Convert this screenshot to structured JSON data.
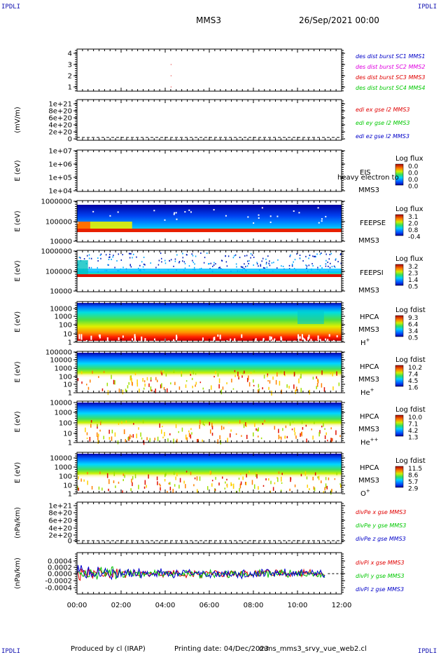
{
  "corners": {
    "tl": "IPDLI",
    "tr": "IPDLI",
    "bl": "IPDLI",
    "br": "IPDLI"
  },
  "header": {
    "spacecraft": "MMS3",
    "date": "26/Sep/2021 00:00"
  },
  "footer": {
    "produced": "Produced by cl (IRAP)",
    "printing": "Printing date: 04/Dec/2023",
    "file": "mms_mms3_srvy_vue_web2.cl"
  },
  "x_ticks": [
    "00:00",
    "02:00",
    "04:00",
    "06:00",
    "08:00",
    "10:00",
    "12:00"
  ],
  "colors": {
    "blue": "#0000c8",
    "magenta": "#e000e0",
    "red": "#e00000",
    "green": "#00c800"
  },
  "chart_data": [
    {
      "type": "scatter",
      "panel": "burst",
      "yticks": [
        "4",
        "3",
        "2",
        "1"
      ],
      "legend": [
        {
          "text": "des dist burst SC1 MMS1",
          "color": "#0000c8"
        },
        {
          "text": "des dist burst SC2 MMS2",
          "color": "#e000e0"
        },
        {
          "text": "des dist burst SC3 MMS3",
          "color": "#e00000"
        },
        {
          "text": "des dist burst SC4 MMS4",
          "color": "#00c800"
        }
      ],
      "points": [
        {
          "x": "04:15",
          "y": 3
        },
        {
          "x": "04:15",
          "y": 2
        },
        {
          "x": "04:15",
          "y": 1
        }
      ]
    },
    {
      "type": "line",
      "panel": "edi",
      "ylabel": "(mV/m)",
      "yticks": [
        "1e+21",
        "8e+20",
        "6e+20",
        "4e+20",
        "2e+20",
        "0"
      ],
      "legend": [
        {
          "text": "edi ex gse l2 MMS3",
          "color": "#e00000"
        },
        {
          "text": "edi ey gse l2 MMS3",
          "color": "#00c800"
        },
        {
          "text": "edi ez gse l2 MMS3",
          "color": "#0000c8"
        }
      ]
    },
    {
      "type": "heatmap",
      "panel": "eis",
      "ylabel": "E (eV)",
      "yticks": [
        "1e+07",
        "1e+06",
        "1e+05",
        "1e+04"
      ],
      "label": "EIS",
      "sublabel": "MMS3",
      "overlay": "heavy electron to",
      "cbar_title": "Log flux",
      "cbar_ticks": [
        "0.0",
        "0.0",
        "0.0",
        "0.0"
      ]
    },
    {
      "type": "heatmap",
      "panel": "feepse",
      "ylabel": "E (eV)",
      "yticks": [
        "1000000",
        "100000",
        "10000"
      ],
      "label": "FEEPSE",
      "sublabel": "MMS3",
      "cbar_title": "Log flux",
      "cbar_ticks": [
        "3.1",
        "2.0",
        "0.8",
        "-0.4"
      ]
    },
    {
      "type": "heatmap",
      "panel": "feepsi",
      "ylabel": "E (eV)",
      "yticks": [
        "1000000",
        "100000",
        "10000"
      ],
      "label": "FEEPSI",
      "sublabel": "MMS3",
      "cbar_title": "Log flux",
      "cbar_ticks": [
        "3.2",
        "2.3",
        "1.4",
        "0.5"
      ]
    },
    {
      "type": "heatmap",
      "panel": "hpca_h",
      "ylabel": "E (eV)",
      "yticks": [
        "10000",
        "1000",
        "100",
        "10",
        "1"
      ],
      "label": "HPCA",
      "sublabel": "MMS3",
      "species": "H",
      "charge": "+",
      "cbar_title": "Log fdist",
      "cbar_ticks": [
        "9.3",
        "6.4",
        "3.4",
        "0.5"
      ]
    },
    {
      "type": "heatmap",
      "panel": "hpca_he",
      "ylabel": "E (eV)",
      "yticks": [
        "100000",
        "10000",
        "1000",
        "100",
        "10",
        "1"
      ],
      "label": "HPCA",
      "sublabel": "MMS3",
      "species": "He",
      "charge": "+",
      "cbar_title": "Log fdist",
      "cbar_ticks": [
        "10.2",
        "7.4",
        "4.5",
        "1.6"
      ]
    },
    {
      "type": "heatmap",
      "panel": "hpca_hepp",
      "ylabel": "E (eV)",
      "yticks": [
        "10000",
        "1000",
        "100",
        "10",
        "1"
      ],
      "label": "HPCA",
      "sublabel": "MMS3",
      "species": "He",
      "charge": "++",
      "cbar_title": "Log fdist",
      "cbar_ticks": [
        "10.0",
        "7.1",
        "4.2",
        "1.3"
      ]
    },
    {
      "type": "heatmap",
      "panel": "hpca_o",
      "ylabel": "E (eV)",
      "yticks": [
        "10000",
        "1000",
        "100",
        "10",
        "1"
      ],
      "label": "HPCA",
      "sublabel": "MMS3",
      "species": "O",
      "charge": "+",
      "cbar_title": "Log fdist",
      "cbar_ticks": [
        "11.5",
        "8.6",
        "5.7",
        "2.9"
      ]
    },
    {
      "type": "line",
      "panel": "divpe",
      "ylabel": "(nPa/km)",
      "yticks": [
        "1e+21",
        "8e+20",
        "6e+20",
        "4e+20",
        "2e+20",
        "0"
      ],
      "legend": [
        {
          "text": "divPe x gse MMS3",
          "color": "#e00000"
        },
        {
          "text": "divPe y gse MMS3",
          "color": "#00c800"
        },
        {
          "text": "divPe z gse MMS3",
          "color": "#0000c8"
        }
      ]
    },
    {
      "type": "line",
      "panel": "divpi",
      "ylabel": "(nPa/km)",
      "yticks": [
        "0.0004",
        "0.0002",
        "0.0000",
        "-0.0002",
        "-0.0004"
      ],
      "xrange": [
        "00:00",
        "11:15"
      ],
      "legend": [
        {
          "text": "divPi x gse MMS3",
          "color": "#e00000"
        },
        {
          "text": "divPi y gse MMS3",
          "color": "#00c800"
        },
        {
          "text": "divPi z gse MMS3",
          "color": "#0000c8"
        }
      ]
    }
  ]
}
